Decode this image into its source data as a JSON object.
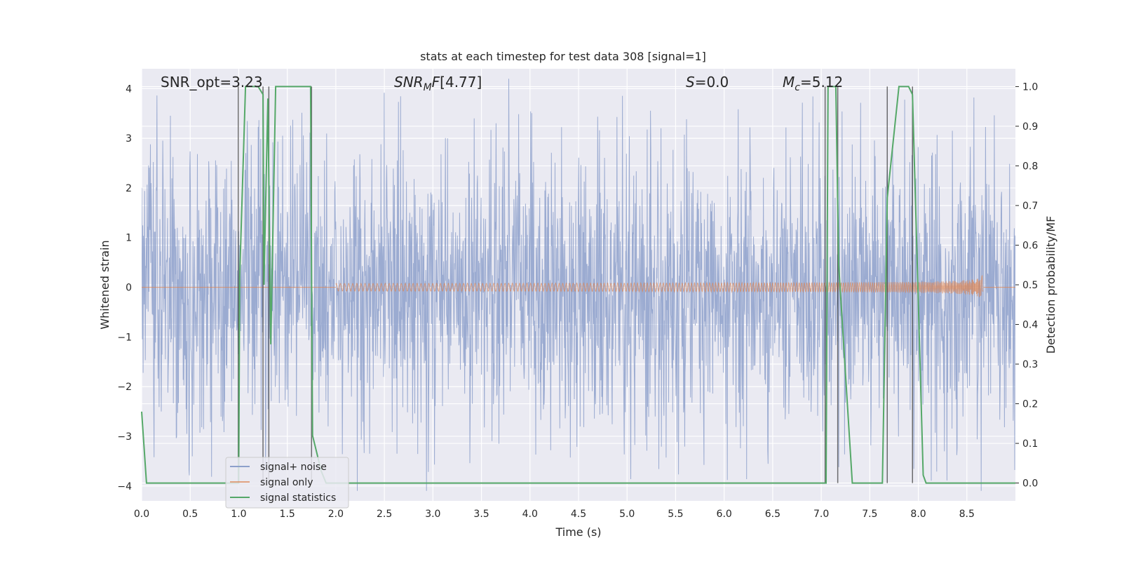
{
  "chart_data": {
    "type": "line",
    "title": "stats at each timestep for test data 308 [signal=1]",
    "xlabel": "Time (s)",
    "ylabel": "Whitened strain",
    "y2label": "Detection probability/MF",
    "xlim": [
      0.0,
      9.0
    ],
    "ylim": [
      -4.3,
      4.4
    ],
    "y2lim": [
      -0.045,
      1.045
    ],
    "xticks": [
      "0.0",
      "0.5",
      "1.0",
      "1.5",
      "2.0",
      "2.5",
      "3.0",
      "3.5",
      "4.0",
      "4.5",
      "5.0",
      "5.5",
      "6.0",
      "6.5",
      "7.0",
      "7.5",
      "8.0",
      "8.5"
    ],
    "yticks": [
      "4",
      "3",
      "2",
      "1",
      "0",
      "−1",
      "−2",
      "−3",
      "−4"
    ],
    "y2ticks": [
      "1.0",
      "0.9",
      "0.8",
      "0.7",
      "0.6",
      "0.5",
      "0.4",
      "0.3",
      "0.2",
      "0.1",
      "0.0"
    ],
    "grid": true,
    "legend_position": "lower-left",
    "annotations": {
      "snr_opt": "SNR_opt=3.23",
      "snr_mf": "[4.77]",
      "s": "=0.0",
      "mc": "=5.12"
    },
    "colors": {
      "noise": "#8da0cb",
      "signal": "#dd8452",
      "stats": "#55a868",
      "vlines": "#404040",
      "background": "#eaeaf2"
    },
    "series": [
      {
        "name": "signal+ noise",
        "description": "noisy whitened strain, amplitude envelope about ±2.5 with peaks near ±3.8",
        "envelope": 1.65,
        "peak": 3.9
      },
      {
        "name": "signal only",
        "chirp": {
          "start": 2.0,
          "merger": 8.67,
          "amp_end": 0.4
        }
      },
      {
        "name": "signal statistics",
        "x": [
          0.0,
          0.05,
          0.1,
          0.3,
          0.6,
          0.99,
          1.0,
          1.01,
          1.07,
          1.2,
          1.25,
          1.26,
          1.3,
          1.33,
          1.38,
          1.74,
          1.75,
          1.76,
          1.85,
          1.9,
          6.9,
          7.0,
          7.05,
          7.07,
          7.15,
          7.18,
          7.32,
          7.5,
          7.63,
          7.68,
          7.8,
          7.9,
          7.94,
          8.05,
          8.08,
          8.2,
          9.0
        ],
        "values": [
          0.18,
          0.0,
          0.0,
          0.0,
          0.0,
          0.0,
          0.0,
          0.52,
          1.0,
          1.0,
          0.98,
          0.5,
          0.97,
          0.35,
          1.0,
          1.0,
          0.52,
          0.12,
          0.03,
          0.0,
          0.0,
          0.0,
          0.0,
          1.0,
          1.0,
          0.55,
          0.0,
          0.0,
          0.0,
          0.72,
          1.0,
          1.0,
          0.98,
          0.02,
          0.0,
          0.0,
          0.0
        ]
      }
    ],
    "vlines": [
      0.995,
      1.25,
      1.31,
      1.75,
      7.04,
      7.17,
      7.68,
      7.94
    ]
  }
}
